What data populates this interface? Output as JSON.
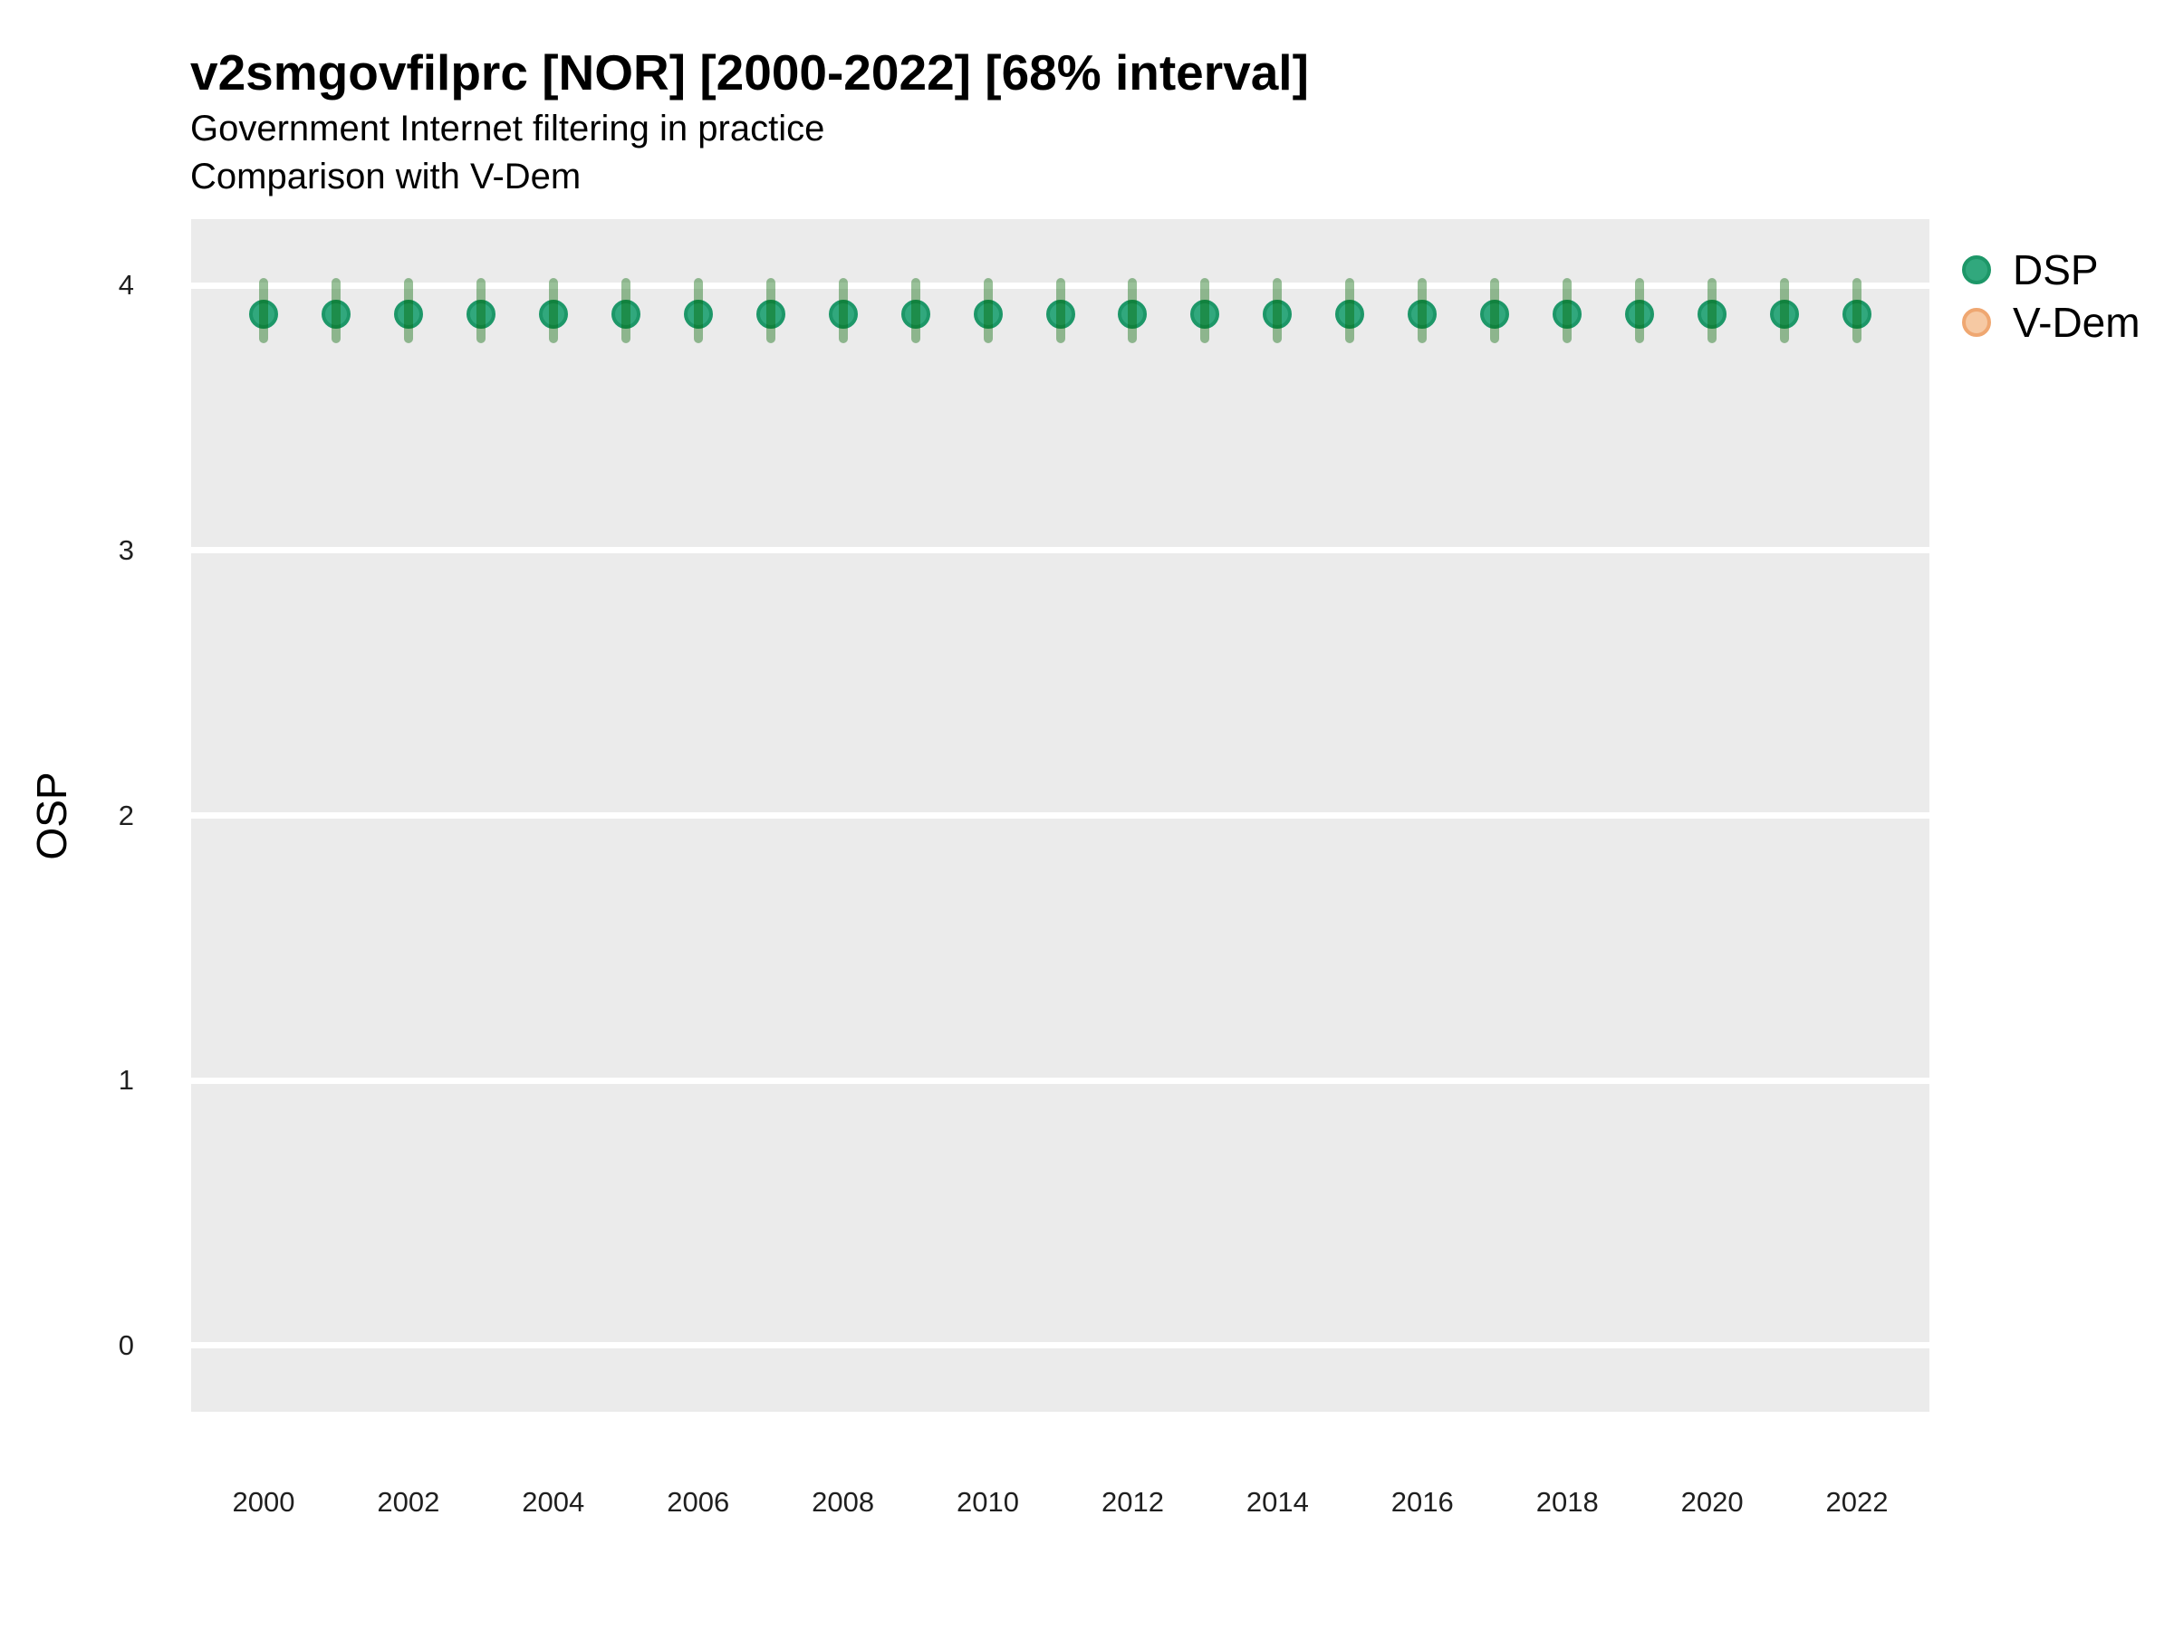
{
  "header": {
    "title": "v2smgovfilprc [NOR] [2000-2022] [68% interval]",
    "subtitle_line1": "Government Internet filtering in practice",
    "subtitle_line2": "Comparison with V-Dem"
  },
  "legend": {
    "position": "right-top",
    "items": [
      {
        "label": "DSP",
        "fill": "#31a87d",
        "stroke": "#1d9768"
      },
      {
        "label": "V-Dem",
        "fill": "#f6c9a3",
        "stroke": "#efa771"
      }
    ]
  },
  "colors": {
    "panel_background": "#ebebeb",
    "gridline": "#ffffff",
    "dsp_point_fill": "#31a87d",
    "dsp_point_stroke": "#1d9768",
    "dsp_interval": "rgba(0,100,0,0.40)",
    "vdem_point_fill": "#f6c9a3",
    "vdem_point_stroke": "#efa771",
    "tick_text": "#1f1f1f",
    "text": "#000000"
  },
  "chart_data": {
    "type": "scatter",
    "title": "v2smgovfilprc [NOR] [2000-2022] [68% interval]",
    "subtitle": [
      "Government Internet filtering in practice",
      "Comparison with V-Dem"
    ],
    "xlabel": "",
    "ylabel": "OSP",
    "xlim": [
      1999,
      2023
    ],
    "ylim": [
      -0.25,
      4.25
    ],
    "x_tick_labels": [
      2000,
      2002,
      2004,
      2006,
      2008,
      2010,
      2012,
      2014,
      2016,
      2018,
      2020,
      2022
    ],
    "y_tick_labels": [
      0,
      1,
      2,
      3,
      4
    ],
    "grid": "major-horizontal-only",
    "interval_level": "68%",
    "series": [
      {
        "name": "DSP",
        "style": "point-with-vertical-interval",
        "x": [
          2000,
          2001,
          2002,
          2003,
          2004,
          2005,
          2006,
          2007,
          2008,
          2009,
          2010,
          2011,
          2012,
          2013,
          2014,
          2015,
          2016,
          2017,
          2018,
          2019,
          2020,
          2021,
          2022
        ],
        "estimate": [
          3.89,
          3.89,
          3.89,
          3.89,
          3.89,
          3.89,
          3.89,
          3.89,
          3.89,
          3.89,
          3.89,
          3.89,
          3.89,
          3.89,
          3.89,
          3.89,
          3.89,
          3.89,
          3.89,
          3.89,
          3.89,
          3.89,
          3.89
        ],
        "lower": [
          3.8,
          3.8,
          3.8,
          3.8,
          3.8,
          3.8,
          3.8,
          3.8,
          3.8,
          3.8,
          3.8,
          3.8,
          3.8,
          3.8,
          3.8,
          3.8,
          3.8,
          3.8,
          3.8,
          3.8,
          3.8,
          3.8,
          3.8
        ],
        "upper": [
          4.01,
          4.01,
          4.01,
          4.01,
          4.01,
          4.01,
          4.01,
          4.01,
          4.01,
          4.01,
          4.01,
          4.01,
          4.01,
          4.01,
          4.01,
          4.01,
          4.01,
          4.01,
          4.01,
          4.01,
          4.01,
          4.01,
          4.01
        ]
      },
      {
        "name": "V-Dem",
        "style": "point-with-vertical-interval",
        "x": [],
        "estimate": [],
        "lower": [],
        "upper": []
      }
    ]
  }
}
